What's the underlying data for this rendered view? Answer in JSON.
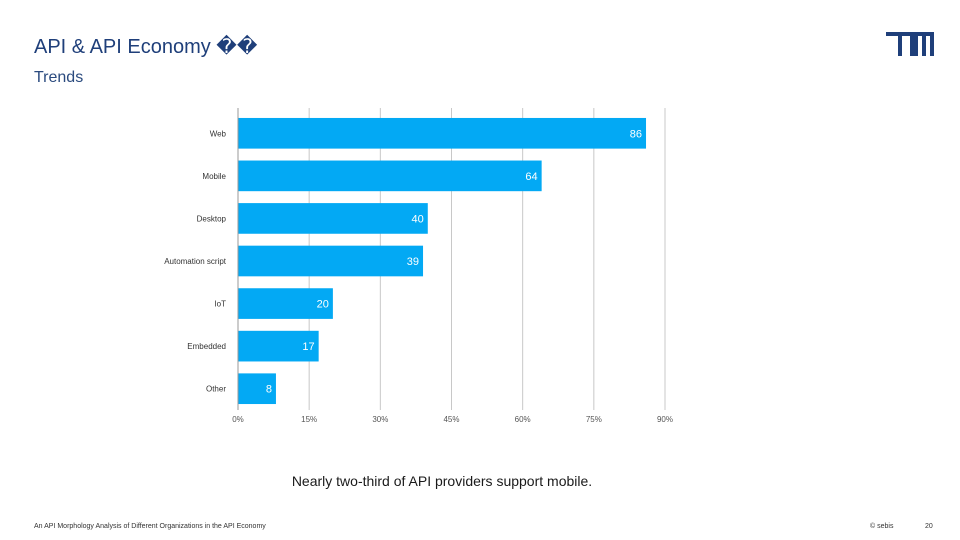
{
  "slide": {
    "title": "API & API Economy ��",
    "subtitle": "Trends",
    "caption": "Nearly two-third of API providers support mobile.",
    "footer_left": "An API Morphology Analysis of Different Organizations in the API Economy",
    "footer_right": "© sebis",
    "page_number": "20",
    "logo_icon": "tum-logo-icon",
    "accent_color": "#1f3f7a"
  },
  "chart_data": {
    "type": "bar",
    "orientation": "horizontal",
    "categories": [
      "Web",
      "Mobile",
      "Desktop",
      "Automation script",
      "IoT",
      "Embedded",
      "Other"
    ],
    "values": [
      86,
      64,
      40,
      39,
      20,
      17,
      8
    ],
    "bar_labels": [
      "86",
      "64",
      "40",
      "39",
      "20",
      "17",
      "8"
    ],
    "xlim": [
      0,
      90
    ],
    "ticks": [
      0,
      15,
      30,
      45,
      60,
      75,
      90
    ],
    "tick_labels": [
      "0%",
      "15%",
      "30%",
      "45%",
      "60%",
      "75%",
      "90%"
    ],
    "grid": true,
    "bar_color": "#03a9f4"
  }
}
